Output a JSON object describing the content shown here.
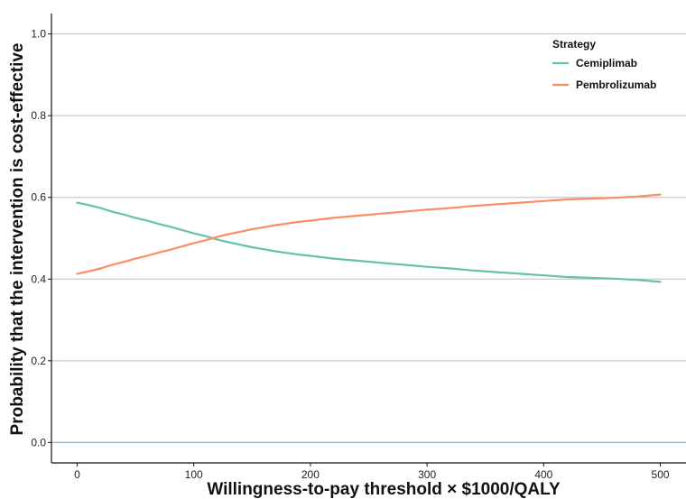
{
  "chart_data": {
    "type": "line",
    "title": "",
    "xlabel": "Willingness-to-pay threshold × $1000/QALY",
    "ylabel": "Probability that the intervention is cost-effective",
    "xlim": [
      -22,
      522
    ],
    "ylim": [
      -0.05,
      1.05
    ],
    "x_ticks": [
      0,
      100,
      200,
      300,
      400,
      500
    ],
    "x_tick_labels": [
      "0",
      "100",
      "200",
      "300",
      "400",
      "500"
    ],
    "y_ticks": [
      0.0,
      0.2,
      0.4,
      0.6,
      0.8,
      1.0
    ],
    "y_tick_labels": [
      "0.0",
      "0.2",
      "0.4",
      "0.6",
      "0.8",
      "1.0"
    ],
    "grid": "horizontal",
    "reference_line": {
      "y": 0.0,
      "color": "#9fb6cd"
    },
    "legend": {
      "title": "Strategy",
      "position": "top-right"
    },
    "x": [
      0,
      10,
      20,
      30,
      40,
      50,
      60,
      70,
      80,
      90,
      100,
      110,
      120,
      130,
      140,
      150,
      160,
      170,
      180,
      190,
      200,
      220,
      240,
      260,
      280,
      300,
      320,
      340,
      360,
      380,
      400,
      420,
      440,
      460,
      480,
      500
    ],
    "series": [
      {
        "name": "Cemiplimab",
        "color": "#66c2a5",
        "values": [
          0.587,
          0.581,
          0.574,
          0.565,
          0.558,
          0.55,
          0.543,
          0.535,
          0.528,
          0.52,
          0.512,
          0.505,
          0.497,
          0.49,
          0.484,
          0.478,
          0.473,
          0.468,
          0.464,
          0.46,
          0.457,
          0.45,
          0.445,
          0.44,
          0.435,
          0.43,
          0.426,
          0.421,
          0.417,
          0.413,
          0.409,
          0.405,
          0.403,
          0.401,
          0.398,
          0.393
        ]
      },
      {
        "name": "Pembrolizumab",
        "color": "#fc8d62",
        "values": [
          0.413,
          0.419,
          0.426,
          0.435,
          0.442,
          0.45,
          0.457,
          0.465,
          0.472,
          0.48,
          0.488,
          0.495,
          0.503,
          0.51,
          0.516,
          0.522,
          0.527,
          0.532,
          0.536,
          0.54,
          0.543,
          0.55,
          0.555,
          0.56,
          0.565,
          0.57,
          0.574,
          0.579,
          0.583,
          0.587,
          0.591,
          0.595,
          0.597,
          0.599,
          0.602,
          0.607
        ]
      }
    ]
  }
}
